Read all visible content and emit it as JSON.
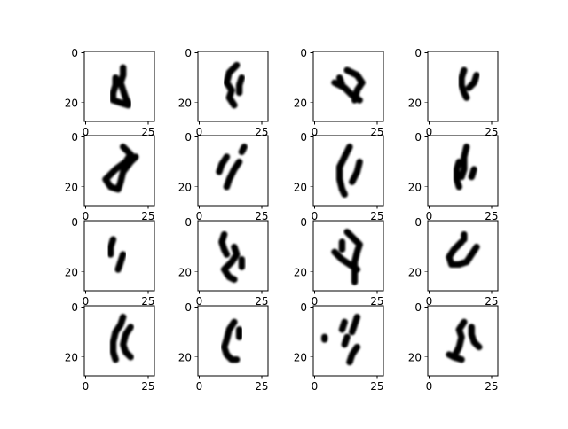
{
  "figure": {
    "rows": 4,
    "cols": 4,
    "background": "#ffffff",
    "image_size": 28,
    "colormap": "gray_r",
    "grid": false
  },
  "axes_common": {
    "x_ticks": [
      0,
      25
    ],
    "x_tick_labels": [
      "0",
      "25"
    ],
    "y_ticks": [
      0,
      20
    ],
    "y_tick_labels": [
      "0",
      "20"
    ],
    "xlim": [
      -0.5,
      27.5
    ],
    "ylim": [
      27.5,
      -0.5
    ]
  },
  "panels": [
    {
      "name": "panel-1-1",
      "strokes": [
        [
          [
            12,
            10
          ],
          [
            12,
            13
          ],
          [
            11,
            16
          ],
          [
            11,
            19
          ],
          [
            14,
            20
          ],
          [
            17,
            21
          ]
        ],
        [
          [
            15,
            6
          ],
          [
            15,
            9
          ],
          [
            14,
            12
          ],
          [
            15,
            15
          ],
          [
            16,
            18
          ],
          [
            17,
            20
          ]
        ]
      ]
    },
    {
      "name": "panel-1-2",
      "strokes": [
        [
          [
            15,
            5
          ],
          [
            12,
            8
          ],
          [
            11,
            12
          ],
          [
            13,
            15
          ],
          [
            12,
            18
          ],
          [
            14,
            21
          ]
        ],
        [
          [
            17,
            10
          ],
          [
            16,
            13
          ],
          [
            16,
            16
          ]
        ]
      ]
    },
    {
      "name": "panel-1-3",
      "strokes": [
        [
          [
            8,
            12
          ],
          [
            12,
            14
          ],
          [
            15,
            17
          ],
          [
            18,
            19
          ]
        ],
        [
          [
            13,
            7
          ],
          [
            17,
            9
          ],
          [
            19,
            12
          ],
          [
            17,
            15
          ],
          [
            16,
            19
          ]
        ],
        [
          [
            10,
            10
          ],
          [
            11,
            13
          ]
        ]
      ]
    },
    {
      "name": "panel-1-4",
      "strokes": [
        [
          [
            14,
            7
          ],
          [
            13,
            10
          ],
          [
            13,
            13
          ],
          [
            14,
            16
          ],
          [
            15,
            18
          ]
        ],
        [
          [
            19,
            9
          ],
          [
            18,
            12
          ],
          [
            16,
            14
          ]
        ]
      ]
    },
    {
      "name": "panel-2-1",
      "strokes": [
        [
          [
            15,
            4
          ],
          [
            18,
            7
          ],
          [
            16,
            10
          ],
          [
            12,
            13
          ],
          [
            8,
            17
          ],
          [
            10,
            20
          ],
          [
            13,
            21
          ],
          [
            14,
            18
          ],
          [
            15,
            14
          ],
          [
            18,
            10
          ]
        ],
        [
          [
            20,
            8
          ],
          [
            18,
            10
          ]
        ]
      ]
    },
    {
      "name": "panel-2-2",
      "strokes": [
        [
          [
            11,
            8
          ],
          [
            9,
            11
          ],
          [
            8,
            14
          ]
        ],
        [
          [
            16,
            10
          ],
          [
            14,
            13
          ],
          [
            12,
            17
          ],
          [
            11,
            20
          ]
        ],
        [
          [
            18,
            4
          ],
          [
            17,
            6
          ]
        ]
      ]
    },
    {
      "name": "panel-2-3",
      "strokes": [
        [
          [
            14,
            4
          ],
          [
            12,
            8
          ],
          [
            10,
            12
          ],
          [
            10,
            17
          ],
          [
            11,
            21
          ],
          [
            12,
            23
          ]
        ],
        [
          [
            18,
            10
          ],
          [
            17,
            14
          ],
          [
            15,
            18
          ]
        ]
      ]
    },
    {
      "name": "panel-2-4",
      "strokes": [
        [
          [
            12,
            10
          ],
          [
            11,
            13
          ],
          [
            11,
            17
          ],
          [
            12,
            20
          ]
        ],
        [
          [
            15,
            4
          ],
          [
            14,
            8
          ],
          [
            14,
            13
          ],
          [
            13,
            16
          ]
        ],
        [
          [
            18,
            13
          ],
          [
            17,
            16
          ]
        ]
      ]
    },
    {
      "name": "panel-3-1",
      "strokes": [
        [
          [
            11,
            7
          ],
          [
            10,
            10
          ],
          [
            10,
            13
          ]
        ],
        [
          [
            15,
            13
          ],
          [
            14,
            16
          ],
          [
            13,
            19
          ]
        ]
      ]
    },
    {
      "name": "panel-3-2",
      "strokes": [
        [
          [
            10,
            5
          ],
          [
            9,
            8
          ],
          [
            10,
            11
          ],
          [
            11,
            13
          ]
        ],
        [
          [
            14,
            10
          ],
          [
            15,
            13
          ],
          [
            13,
            16
          ],
          [
            10,
            19
          ],
          [
            12,
            22
          ],
          [
            14,
            23
          ]
        ],
        [
          [
            17,
            15
          ],
          [
            17,
            18
          ]
        ]
      ]
    },
    {
      "name": "panel-3-3",
      "strokes": [
        [
          [
            8,
            12
          ],
          [
            11,
            15
          ],
          [
            14,
            17
          ],
          [
            17,
            19
          ]
        ],
        [
          [
            13,
            4
          ],
          [
            16,
            7
          ],
          [
            18,
            9
          ],
          [
            17,
            12
          ],
          [
            16,
            16
          ],
          [
            16,
            21
          ],
          [
            16,
            24
          ]
        ],
        [
          [
            11,
            8
          ],
          [
            11,
            11
          ]
        ]
      ]
    },
    {
      "name": "panel-3-4",
      "strokes": [
        [
          [
            13,
            8
          ],
          [
            10,
            11
          ],
          [
            8,
            14
          ],
          [
            9,
            17
          ],
          [
            12,
            17
          ],
          [
            15,
            16
          ]
        ],
        [
          [
            19,
            10
          ],
          [
            17,
            13
          ],
          [
            15,
            16
          ]
        ],
        [
          [
            14,
            5
          ],
          [
            14,
            7
          ]
        ]
      ]
    },
    {
      "name": "panel-4-1",
      "strokes": [
        [
          [
            15,
            4
          ],
          [
            14,
            7
          ],
          [
            12,
            10
          ],
          [
            11,
            14
          ],
          [
            11,
            18
          ],
          [
            12,
            21
          ]
        ],
        [
          [
            18,
            8
          ],
          [
            16,
            11
          ],
          [
            15,
            15
          ],
          [
            16,
            18
          ],
          [
            18,
            20
          ]
        ]
      ]
    },
    {
      "name": "panel-4-2",
      "strokes": [
        [
          [
            14,
            6
          ],
          [
            12,
            9
          ],
          [
            11,
            13
          ],
          [
            10,
            16
          ],
          [
            11,
            19
          ],
          [
            13,
            21
          ],
          [
            15,
            21
          ]
        ],
        [
          [
            16,
            9
          ],
          [
            16,
            12
          ]
        ]
      ]
    },
    {
      "name": "panel-4-3",
      "strokes": [
        [
          [
            12,
            6
          ],
          [
            11,
            9
          ]
        ],
        [
          [
            17,
            4
          ],
          [
            16,
            7
          ],
          [
            15,
            10
          ]
        ],
        [
          [
            13,
            12
          ],
          [
            12,
            15
          ]
        ],
        [
          [
            17,
            16
          ],
          [
            15,
            19
          ],
          [
            14,
            22
          ]
        ],
        [
          [
            4,
            12
          ],
          [
            4,
            13
          ]
        ]
      ]
    },
    {
      "name": "panel-4-4",
      "strokes": [
        [
          [
            14,
            6
          ],
          [
            12,
            9
          ],
          [
            13,
            12
          ],
          [
            12,
            16
          ],
          [
            10,
            20
          ],
          [
            13,
            21
          ]
        ],
        [
          [
            17,
            8
          ],
          [
            17,
            11
          ],
          [
            18,
            14
          ],
          [
            20,
            16
          ]
        ],
        [
          [
            8,
            19
          ],
          [
            10,
            20
          ]
        ]
      ]
    }
  ]
}
